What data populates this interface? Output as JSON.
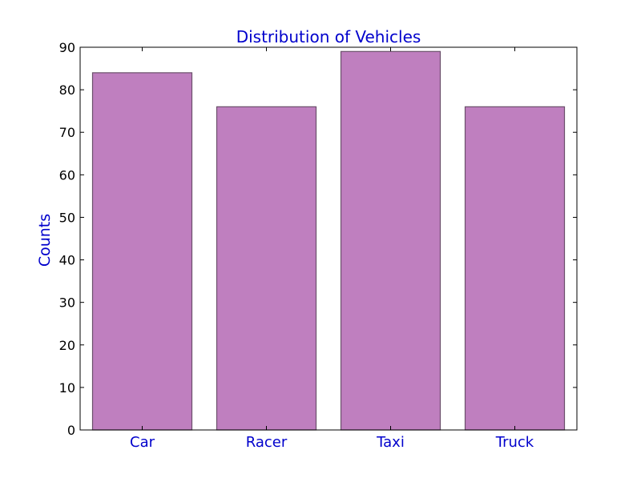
{
  "chart_data": {
    "type": "bar",
    "title": "Distribution of Vehicles",
    "xlabel": "",
    "ylabel": "Counts",
    "categories": [
      "Car",
      "Racer",
      "Taxi",
      "Truck"
    ],
    "values": [
      84,
      76,
      89,
      76
    ],
    "ylim": [
      0,
      90
    ],
    "yticks": [
      0,
      10,
      20,
      30,
      40,
      50,
      60,
      70,
      80,
      90
    ],
    "grid": false,
    "colors": {
      "bar_fill": "#bf7fbf",
      "bar_edge": "#6b4f6b",
      "label_text": "#0000cc",
      "axis": "#000000"
    }
  }
}
